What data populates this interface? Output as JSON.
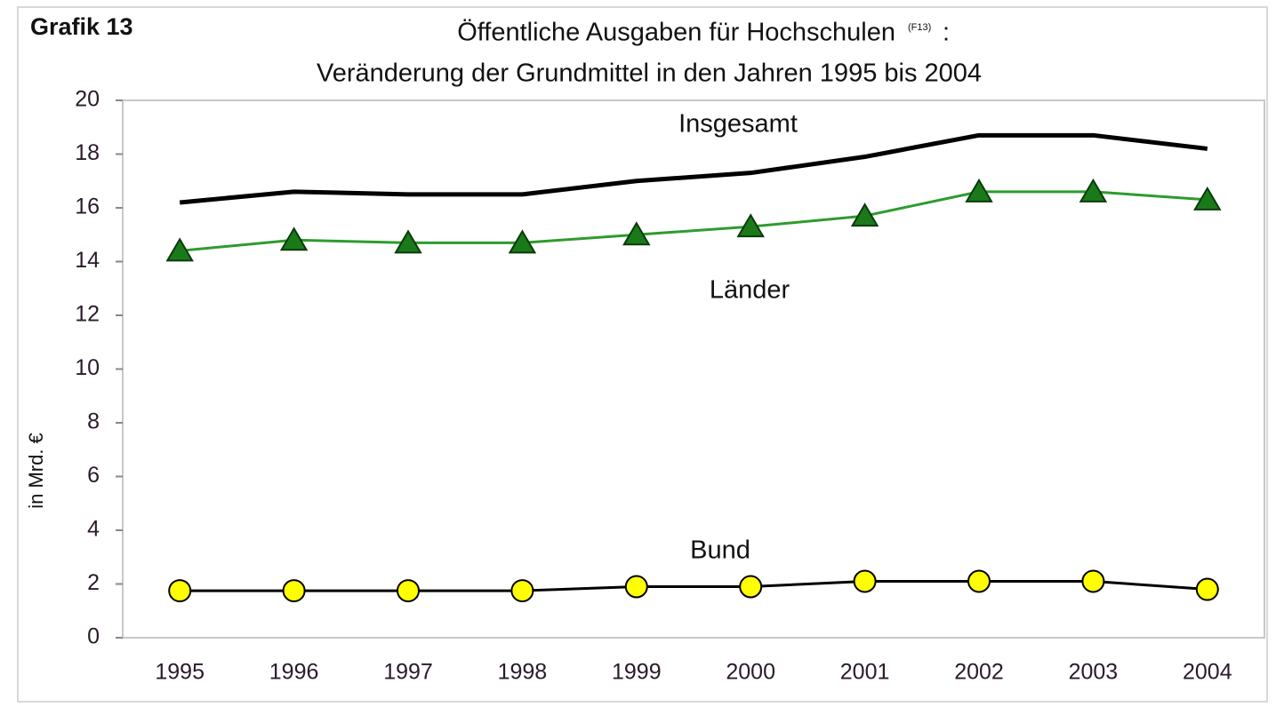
{
  "chart_data": {
    "type": "line",
    "label": "Grafik 13",
    "title": "Öffentliche Ausgaben für Hochschulen",
    "title_note": "(F13)",
    "title_end": ":",
    "subtitle": "Veränderung der Grundmittel in den Jahren 1995 bis 2004",
    "y_label": "in Mrd. €",
    "categories": [
      "1995",
      "1996",
      "1997",
      "1998",
      "1999",
      "2000",
      "2001",
      "2002",
      "2003",
      "2004"
    ],
    "series": [
      {
        "name": "Insgesamt",
        "color": "#000000",
        "marker": "none",
        "values": [
          16.2,
          16.6,
          16.5,
          16.5,
          17.0,
          17.3,
          17.9,
          18.7,
          18.7,
          18.2
        ]
      },
      {
        "name": "Länder",
        "color": "#2e9b2e",
        "marker": "triangle",
        "marker_color": "#1a7a1a",
        "values": [
          14.4,
          14.8,
          14.7,
          14.7,
          15.0,
          15.3,
          15.7,
          16.6,
          16.6,
          16.3
        ]
      },
      {
        "name": "Bund",
        "color": "#000000",
        "marker": "circle",
        "marker_color": "#ffff00",
        "values": [
          1.75,
          1.75,
          1.75,
          1.75,
          1.9,
          1.9,
          2.1,
          2.1,
          2.1,
          1.8
        ]
      }
    ],
    "ylim": [
      0,
      20
    ],
    "yticks": [
      0,
      2,
      4,
      6,
      8,
      10,
      12,
      14,
      16,
      18,
      20
    ],
    "grid": false
  }
}
